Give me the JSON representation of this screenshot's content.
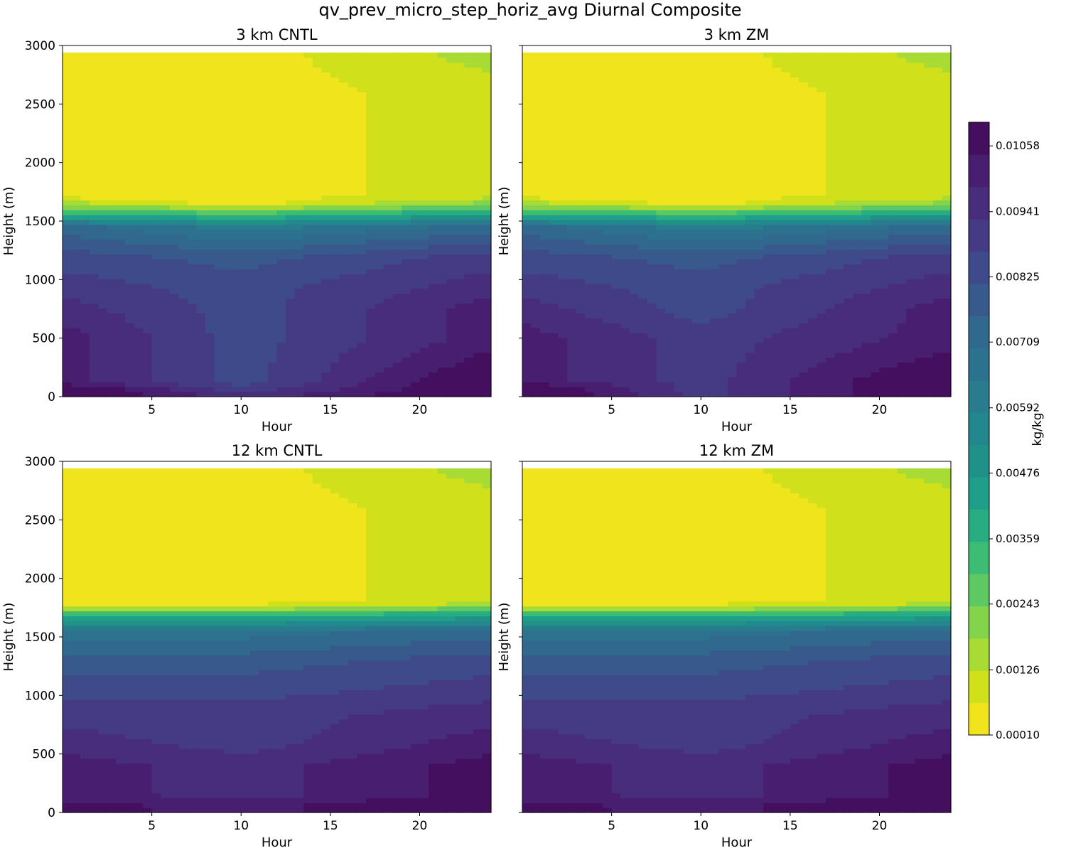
{
  "figure": {
    "title": "qv_prev_micro_step_horiz_avg Diurnal Composite"
  },
  "chart_data": [
    {
      "type": "contour",
      "title": "3 km CNTL",
      "xlabel": "Hour",
      "ylabel": "Height (m)",
      "xlim": [
        0,
        24
      ],
      "ylim": [
        0,
        3000
      ],
      "xticks": [
        5,
        10,
        15,
        20
      ],
      "yticks": [
        0,
        500,
        1000,
        1500,
        2000,
        2500,
        3000
      ],
      "data_top_height": 2940,
      "colorbar_level_indices_by_height": {
        "heights": [
          0,
          60,
          130,
          300,
          500,
          750,
          950,
          1200,
          1450,
          1580,
          1650,
          1720,
          2200,
          2600,
          2940
        ],
        "hour_0": [
          19,
          19,
          17,
          17,
          17,
          16,
          15,
          14,
          12,
          5,
          2,
          0,
          0,
          0,
          0
        ],
        "hour_10": [
          16,
          15,
          14,
          14,
          14,
          14,
          14,
          13,
          10,
          4,
          0,
          0,
          0,
          0,
          0
        ],
        "hour_24": [
          19,
          19,
          19,
          18,
          17,
          17,
          16,
          15,
          12,
          6,
          3,
          1,
          1,
          1,
          2
        ]
      }
    },
    {
      "type": "contour",
      "title": "3 km ZM",
      "xlabel": "Hour",
      "ylabel": "Height (m)",
      "xlim": [
        0,
        24
      ],
      "ylim": [
        0,
        3000
      ],
      "xticks": [
        5,
        10,
        15,
        20
      ],
      "yticks": [
        0,
        500,
        1000,
        1500,
        2000,
        2500,
        3000
      ],
      "data_top_height": 2940,
      "colorbar_level_indices_by_height": {
        "heights": [
          0,
          60,
          150,
          300,
          500,
          750,
          950,
          1200,
          1450,
          1580,
          1650,
          1720,
          2200,
          2600,
          2940
        ],
        "hour_0": [
          19,
          19,
          17,
          17,
          17,
          16,
          15,
          14,
          12,
          5,
          2,
          0,
          0,
          0,
          0
        ],
        "hour_10": [
          15,
          15,
          15,
          15,
          15,
          14,
          14,
          13,
          10,
          4,
          0,
          0,
          0,
          0,
          0
        ],
        "hour_24": [
          19,
          19,
          19,
          18,
          17,
          17,
          16,
          15,
          12,
          6,
          3,
          1,
          1,
          1,
          2
        ]
      }
    },
    {
      "type": "contour",
      "title": "12 km CNTL",
      "xlabel": "Hour",
      "ylabel": "Height (m)",
      "xlim": [
        0,
        24
      ],
      "ylim": [
        0,
        3000
      ],
      "xticks": [
        5,
        10,
        15,
        20
      ],
      "yticks": [
        0,
        500,
        1000,
        1500,
        2000,
        2500,
        3000
      ],
      "data_top_height": 2940,
      "colorbar_level_indices_by_height": {
        "heights": [
          0,
          60,
          150,
          400,
          600,
          850,
          1050,
          1300,
          1550,
          1700,
          1760,
          1800,
          2200,
          2600,
          2940
        ],
        "hour_0": [
          18,
          18,
          17,
          17,
          16,
          15,
          14,
          13,
          11,
          5,
          1,
          0,
          0,
          0,
          0
        ],
        "hour_10": [
          17,
          17,
          16,
          16,
          15,
          15,
          14,
          13,
          11,
          5,
          1,
          0,
          0,
          0,
          0
        ],
        "hour_24": [
          19,
          19,
          18,
          18,
          17,
          16,
          15,
          14,
          12,
          6,
          3,
          1,
          1,
          1,
          2
        ]
      }
    },
    {
      "type": "contour",
      "title": "12 km ZM",
      "xlabel": "Hour",
      "ylabel": "Height (m)",
      "xlim": [
        0,
        24
      ],
      "ylim": [
        0,
        3000
      ],
      "xticks": [
        5,
        10,
        15,
        20
      ],
      "yticks": [
        0,
        500,
        1000,
        1500,
        2000,
        2500,
        3000
      ],
      "data_top_height": 2940,
      "colorbar_level_indices_by_height": {
        "heights": [
          0,
          60,
          150,
          400,
          600,
          850,
          1050,
          1300,
          1550,
          1700,
          1760,
          1800,
          2200,
          2600,
          2940
        ],
        "hour_0": [
          18,
          18,
          17,
          17,
          16,
          15,
          14,
          13,
          11,
          5,
          1,
          0,
          0,
          0,
          0
        ],
        "hour_10": [
          17,
          17,
          16,
          16,
          15,
          15,
          14,
          13,
          11,
          5,
          1,
          0,
          0,
          0,
          0
        ],
        "hour_24": [
          19,
          19,
          18,
          18,
          17,
          16,
          15,
          14,
          12,
          6,
          3,
          1,
          1,
          1,
          2
        ]
      }
    }
  ],
  "colorbar": {
    "label": "kg/kg",
    "colormap": "viridis (reversed)",
    "ticks": [
      "0.00010",
      "0.00126",
      "0.00243",
      "0.00359",
      "0.00476",
      "0.00592",
      "0.00709",
      "0.00825",
      "0.00941",
      "0.01058"
    ],
    "tick_values": [
      0.0001,
      0.00126,
      0.00243,
      0.00359,
      0.00476,
      0.00592,
      0.00709,
      0.00825,
      0.00941,
      0.01058
    ],
    "range": [
      0.0001,
      0.011
    ],
    "level_count": 19,
    "colors": [
      "#f0e41c",
      "#d0e11c",
      "#a8db34",
      "#84d44b",
      "#5ec962",
      "#3dbc74",
      "#27ad81",
      "#1f9e89",
      "#1f9187",
      "#23888e",
      "#287c8e",
      "#2c718e",
      "#31688e",
      "#38598c",
      "#3e4a89",
      "#443b84",
      "#472d7b",
      "#481f70",
      "#440f5f"
    ]
  }
}
